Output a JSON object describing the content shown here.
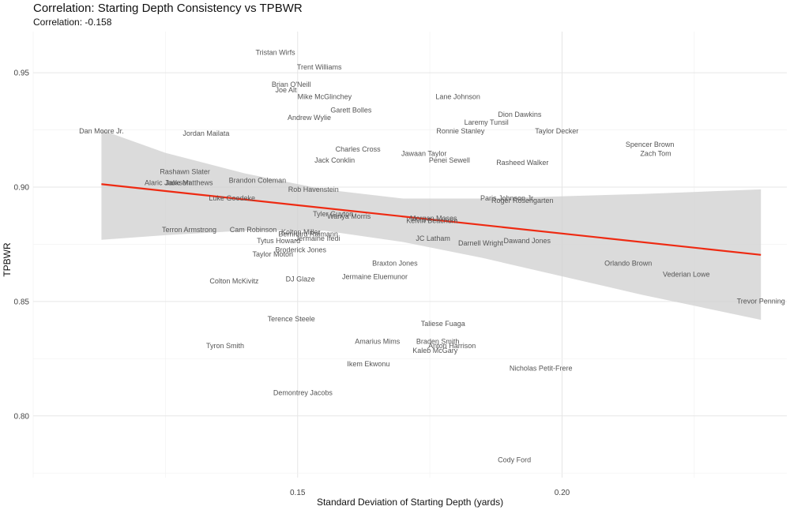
{
  "chart_data": {
    "type": "scatter",
    "title": "Correlation: Starting Depth Consistency vs TPBWR",
    "subtitle": "Correlation: -0.158",
    "xlabel": "Standard Deviation of Starting Depth (yards)",
    "ylabel": "TPBWR",
    "xlim": [
      0.1,
      0.2425
    ],
    "ylim": [
      0.773,
      0.968
    ],
    "x_ticks": [
      {
        "value": 0.15,
        "label": "0.15"
      },
      {
        "value": 0.2,
        "label": "0.20"
      }
    ],
    "y_ticks": [
      {
        "value": 0.8,
        "label": "0.80"
      },
      {
        "value": 0.85,
        "label": "0.85"
      },
      {
        "value": 0.9,
        "label": "0.90"
      },
      {
        "value": 0.95,
        "label": "0.95"
      }
    ],
    "trend_line": {
      "x": [
        0.1129,
        0.2376
      ],
      "y": [
        0.9013,
        0.8704
      ]
    },
    "confidence_band": {
      "x": [
        0.1129,
        0.125,
        0.14,
        0.155,
        0.17,
        0.185,
        0.2,
        0.215,
        0.2376
      ],
      "upper": [
        0.925,
        0.915,
        0.906,
        0.899,
        0.895,
        0.895,
        0.896,
        0.897,
        0.899
      ],
      "lower": [
        0.877,
        0.879,
        0.881,
        0.881,
        0.876,
        0.869,
        0.861,
        0.853,
        0.842
      ]
    },
    "points": [
      {
        "label": "Tristan Wirfs",
        "x": 0.1458,
        "y": 0.9588
      },
      {
        "label": "Trent Williams",
        "x": 0.1541,
        "y": 0.9524
      },
      {
        "label": "Brian O'Neill",
        "x": 0.1488,
        "y": 0.9448
      },
      {
        "label": "Joe Alt",
        "x": 0.1478,
        "y": 0.9424
      },
      {
        "label": "Mike McGlinchey",
        "x": 0.1551,
        "y": 0.9396
      },
      {
        "label": "Lane Johnson",
        "x": 0.1803,
        "y": 0.9396
      },
      {
        "label": "Garett Bolles",
        "x": 0.1601,
        "y": 0.9337
      },
      {
        "label": "Andrew Wylie",
        "x": 0.1522,
        "y": 0.9303
      },
      {
        "label": "Dion Dawkins",
        "x": 0.192,
        "y": 0.9317
      },
      {
        "label": "Laremy Tunsil",
        "x": 0.1857,
        "y": 0.9283
      },
      {
        "label": "Dan Moore Jr.",
        "x": 0.1129,
        "y": 0.9245
      },
      {
        "label": "Jordan Mailata",
        "x": 0.1327,
        "y": 0.9235
      },
      {
        "label": "Ronnie Stanley",
        "x": 0.1808,
        "y": 0.9245
      },
      {
        "label": "Taylor Decker",
        "x": 0.199,
        "y": 0.9245
      },
      {
        "label": "Spencer Brown",
        "x": 0.2166,
        "y": 0.9186
      },
      {
        "label": "Zach Tom",
        "x": 0.2177,
        "y": 0.9147
      },
      {
        "label": "Charles Cross",
        "x": 0.1614,
        "y": 0.9166
      },
      {
        "label": "Jawaan Taylor",
        "x": 0.1739,
        "y": 0.9147
      },
      {
        "label": "Jack Conklin",
        "x": 0.157,
        "y": 0.9117
      },
      {
        "label": "Penei Sewell",
        "x": 0.1787,
        "y": 0.9117
      },
      {
        "label": "Rasheed Walker",
        "x": 0.1925,
        "y": 0.9107
      },
      {
        "label": "Rashawn Slater",
        "x": 0.1287,
        "y": 0.9068
      },
      {
        "label": "Brandon Coleman",
        "x": 0.1424,
        "y": 0.9029
      },
      {
        "label": "Alaric Jackson",
        "x": 0.1254,
        "y": 0.9019
      },
      {
        "label": "Jake Matthews",
        "x": 0.1295,
        "y": 0.9019
      },
      {
        "label": "Rob Havenstein",
        "x": 0.153,
        "y": 0.899
      },
      {
        "label": "Luke Goedeke",
        "x": 0.1376,
        "y": 0.8951
      },
      {
        "label": "Paris Johnson Jr.",
        "x": 0.1897,
        "y": 0.8951
      },
      {
        "label": "Roger Rosengarten",
        "x": 0.1925,
        "y": 0.8941
      },
      {
        "label": "Tyler Guyton",
        "x": 0.1567,
        "y": 0.8883
      },
      {
        "label": "Wanya Morris",
        "x": 0.1597,
        "y": 0.8873
      },
      {
        "label": "Morgan Moses",
        "x": 0.1757,
        "y": 0.8863
      },
      {
        "label": "Kelvin Beachum",
        "x": 0.1754,
        "y": 0.8853
      },
      {
        "label": "Terron Armstrong",
        "x": 0.1295,
        "y": 0.8814
      },
      {
        "label": "Cam Robinson",
        "x": 0.1416,
        "y": 0.8814
      },
      {
        "label": "Kolton Miller",
        "x": 0.1506,
        "y": 0.8804
      },
      {
        "label": "Bernhard Raimann",
        "x": 0.152,
        "y": 0.8794
      },
      {
        "label": "Jermaine Ifedi",
        "x": 0.1538,
        "y": 0.8775
      },
      {
        "label": "Tytus Howard",
        "x": 0.1464,
        "y": 0.8765
      },
      {
        "label": "JC Latham",
        "x": 0.1756,
        "y": 0.8775
      },
      {
        "label": "Dawand Jones",
        "x": 0.1934,
        "y": 0.8765
      },
      {
        "label": "Darnell Wright",
        "x": 0.1846,
        "y": 0.8755
      },
      {
        "label": "Broderick Jones",
        "x": 0.1506,
        "y": 0.8726
      },
      {
        "label": "Taylor Moton",
        "x": 0.1453,
        "y": 0.8706
      },
      {
        "label": "Braxton Jones",
        "x": 0.1684,
        "y": 0.8667
      },
      {
        "label": "Orlando Brown",
        "x": 0.2125,
        "y": 0.8667
      },
      {
        "label": "Jermaine Eluemunor",
        "x": 0.1646,
        "y": 0.8608
      },
      {
        "label": "DJ Glaze",
        "x": 0.1505,
        "y": 0.8598
      },
      {
        "label": "Colton McKivitz",
        "x": 0.138,
        "y": 0.8589
      },
      {
        "label": "Vederian Lowe",
        "x": 0.2235,
        "y": 0.8618
      },
      {
        "label": "Trevor Penning",
        "x": 0.2376,
        "y": 0.8501
      },
      {
        "label": "Terence Steele",
        "x": 0.1488,
        "y": 0.8423
      },
      {
        "label": "Taliese Fuaga",
        "x": 0.1775,
        "y": 0.8403
      },
      {
        "label": "Amarius Mims",
        "x": 0.1651,
        "y": 0.8325
      },
      {
        "label": "Braden Smith",
        "x": 0.1765,
        "y": 0.8325
      },
      {
        "label": "Anton Harrison",
        "x": 0.1792,
        "y": 0.8306
      },
      {
        "label": "Kaleb McGary",
        "x": 0.176,
        "y": 0.8286
      },
      {
        "label": "Tyron Smith",
        "x": 0.1363,
        "y": 0.8306
      },
      {
        "label": "Ikem Ekwonu",
        "x": 0.1634,
        "y": 0.8227
      },
      {
        "label": "Nicholas Petit-Frere",
        "x": 0.196,
        "y": 0.8208
      },
      {
        "label": "Demontrey Jacobs",
        "x": 0.151,
        "y": 0.8101
      },
      {
        "label": "Cody Ford",
        "x": 0.191,
        "y": 0.7808
      }
    ]
  }
}
